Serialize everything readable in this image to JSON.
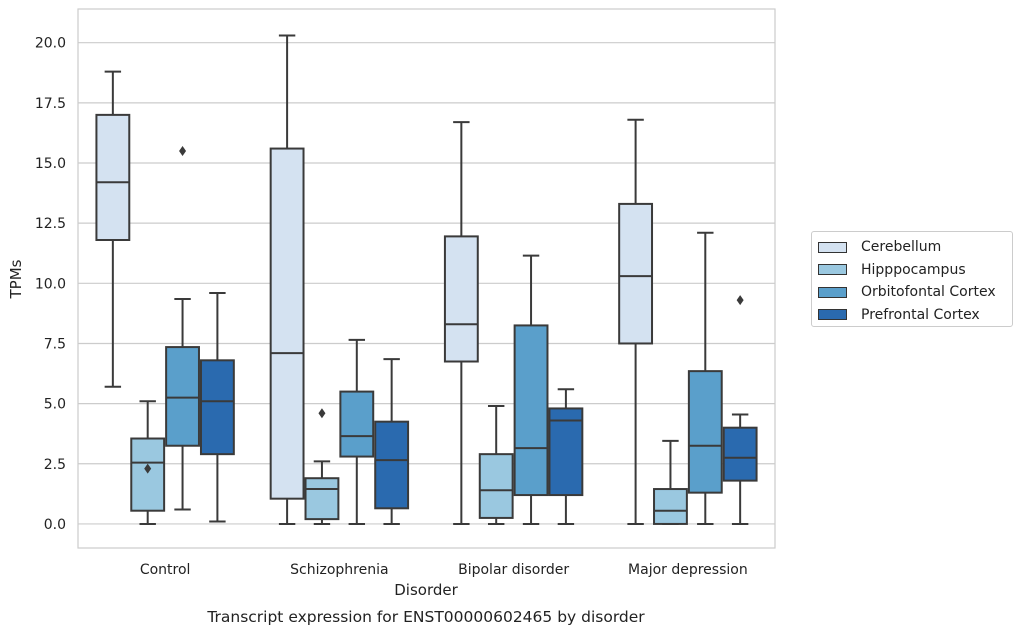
{
  "chart_data": {
    "type": "box",
    "title": "Transcript expression for ENST00000602465 by disorder",
    "xlabel": "Disorder",
    "ylabel": "TPMs",
    "ylim": [
      -1,
      21.4
    ],
    "yticks": [
      "0.0",
      "2.5",
      "5.0",
      "7.5",
      "10.0",
      "12.5",
      "15.0",
      "17.5",
      "20.0"
    ],
    "grid": true,
    "legend_position": "center-right outside",
    "categories": [
      "Control",
      "Schizophrenia",
      "Bipolar disorder",
      "Major depression"
    ],
    "series": [
      {
        "name": "Cerebellum",
        "color": "#d4e2f1",
        "boxes": [
          {
            "whislo": 5.7,
            "q1": 11.8,
            "med": 14.2,
            "q3": 17.0,
            "whishi": 18.8,
            "fliers": []
          },
          {
            "whislo": 0.0,
            "q1": 1.05,
            "med": 7.1,
            "q3": 15.6,
            "whishi": 20.3,
            "fliers": []
          },
          {
            "whislo": 0.0,
            "q1": 6.75,
            "med": 8.3,
            "q3": 11.95,
            "whishi": 16.7,
            "fliers": []
          },
          {
            "whislo": 0.0,
            "q1": 7.5,
            "med": 10.3,
            "q3": 13.3,
            "whishi": 16.8,
            "fliers": []
          }
        ]
      },
      {
        "name": "Hipppocampus",
        "color": "#9ac8e0",
        "boxes": [
          {
            "whislo": 0.0,
            "q1": 0.55,
            "med": 2.55,
            "q3": 3.55,
            "whishi": 5.1,
            "fliers": [
              2.3
            ]
          },
          {
            "whislo": 0.0,
            "q1": 0.2,
            "med": 1.45,
            "q3": 1.9,
            "whishi": 2.6,
            "fliers": [
              4.6
            ]
          },
          {
            "whislo": 0.0,
            "q1": 0.25,
            "med": 1.4,
            "q3": 2.9,
            "whishi": 4.9,
            "fliers": []
          },
          {
            "whislo": 0.0,
            "q1": 0.0,
            "med": 0.55,
            "q3": 1.45,
            "whishi": 3.45,
            "fliers": []
          }
        ]
      },
      {
        "name": "Orbitofontal Cortex",
        "color": "#5a9fcb",
        "boxes": [
          {
            "whislo": 0.6,
            "q1": 3.25,
            "med": 5.25,
            "q3": 7.35,
            "whishi": 9.35,
            "fliers": [
              15.5
            ]
          },
          {
            "whislo": 0.0,
            "q1": 2.8,
            "med": 3.65,
            "q3": 5.5,
            "whishi": 7.65,
            "fliers": []
          },
          {
            "whislo": 0.0,
            "q1": 1.2,
            "med": 3.15,
            "q3": 8.25,
            "whishi": 11.15,
            "fliers": []
          },
          {
            "whislo": 0.0,
            "q1": 1.3,
            "med": 3.25,
            "q3": 6.35,
            "whishi": 12.1,
            "fliers": []
          }
        ]
      },
      {
        "name": "Prefrontal Cortex",
        "color": "#2a6aaf",
        "boxes": [
          {
            "whislo": 0.1,
            "q1": 2.9,
            "med": 5.1,
            "q3": 6.8,
            "whishi": 9.6,
            "fliers": []
          },
          {
            "whislo": 0.0,
            "q1": 0.65,
            "med": 2.65,
            "q3": 4.25,
            "whishi": 6.85,
            "fliers": []
          },
          {
            "whislo": 0.0,
            "q1": 1.2,
            "med": 4.3,
            "q3": 4.8,
            "whishi": 5.6,
            "fliers": []
          },
          {
            "whislo": 0.0,
            "q1": 1.8,
            "med": 2.75,
            "q3": 4.0,
            "whishi": 4.55,
            "fliers": [
              9.3
            ]
          }
        ]
      }
    ]
  }
}
